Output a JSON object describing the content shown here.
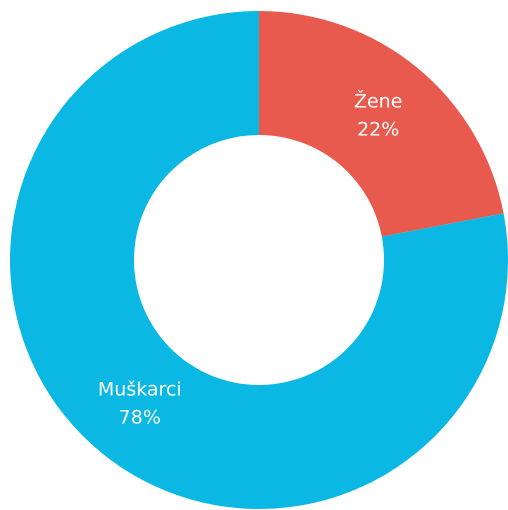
{
  "chart_data": {
    "type": "donut",
    "categories": [
      "Žene",
      "Muškarci"
    ],
    "values": [
      22,
      78
    ],
    "value_labels": [
      "22%",
      "78%"
    ],
    "colors": [
      "#e8594e",
      "#0bb8e3"
    ]
  }
}
